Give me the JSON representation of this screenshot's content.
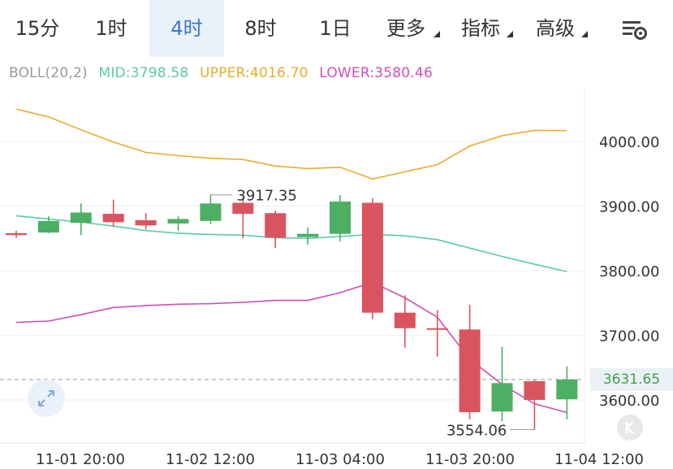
{
  "tabs": [
    {
      "label": "15分",
      "active": false
    },
    {
      "label": "1时",
      "active": false
    },
    {
      "label": "4时",
      "active": true
    },
    {
      "label": "8时",
      "active": false
    },
    {
      "label": "1日",
      "active": false
    },
    {
      "label": "更多",
      "active": false,
      "dropdown": true
    },
    {
      "label": "指标",
      "active": false,
      "dropdown": true
    },
    {
      "label": "高级",
      "active": false,
      "dropdown": true
    }
  ],
  "settings_icon": "chart-settings-icon",
  "indicator": {
    "name": "BOLL(20,2)",
    "mid": "MID:3798.58",
    "upper": "UPPER:4016.70",
    "lower": "LOWER:3580.46"
  },
  "colors": {
    "up": "#4caf63",
    "down": "#d9545e",
    "mid": "#5cc9a7",
    "upper": "#e6ac2b",
    "lower": "#d04fb3",
    "active_tab_text": "#3c78c8"
  },
  "chart_data": {
    "type": "candlestick",
    "y_ticks": [
      "4000.00",
      "3900.00",
      "3800.00",
      "3700.00",
      "3600.00"
    ],
    "x_ticks": [
      "11-01 20:00",
      "11-02 12:00",
      "11-03 04:00",
      "11-03 20:00",
      "11-04 12:00"
    ],
    "current_price": "3631.65",
    "high_label": "3917.35",
    "low_label": "3554.06",
    "candles": [
      {
        "o": 3858,
        "h": 3862,
        "l": 3851,
        "c": 3855
      },
      {
        "o": 3859,
        "h": 3884,
        "l": 3858,
        "c": 3877
      },
      {
        "o": 3874,
        "h": 3904,
        "l": 3855,
        "c": 3890
      },
      {
        "o": 3888,
        "h": 3910,
        "l": 3868,
        "c": 3875
      },
      {
        "o": 3878,
        "h": 3889,
        "l": 3864,
        "c": 3870
      },
      {
        "o": 3873,
        "h": 3884,
        "l": 3862,
        "c": 3880
      },
      {
        "o": 3877,
        "h": 3917.35,
        "l": 3872,
        "c": 3904
      },
      {
        "o": 3905,
        "h": 3914,
        "l": 3850,
        "c": 3888
      },
      {
        "o": 3889,
        "h": 3893,
        "l": 3835,
        "c": 3851
      },
      {
        "o": 3852,
        "h": 3867,
        "l": 3840,
        "c": 3857
      },
      {
        "o": 3857,
        "h": 3917,
        "l": 3845,
        "c": 3907
      },
      {
        "o": 3905,
        "h": 3912,
        "l": 3725,
        "c": 3735
      },
      {
        "o": 3735,
        "h": 3762,
        "l": 3681,
        "c": 3711
      },
      {
        "o": 3711,
        "h": 3739,
        "l": 3667,
        "c": 3709
      },
      {
        "o": 3709,
        "h": 3747,
        "l": 3570,
        "c": 3581
      },
      {
        "o": 3582,
        "h": 3682,
        "l": 3567,
        "c": 3626
      },
      {
        "o": 3629,
        "h": 3632,
        "l": 3554.06,
        "c": 3600
      },
      {
        "o": 3601,
        "h": 3652,
        "l": 3570,
        "c": 3631.65
      }
    ],
    "mid": [
      3885,
      3880,
      3875,
      3869,
      3862,
      3858,
      3856,
      3855,
      3851,
      3850,
      3853,
      3856,
      3854,
      3848,
      3835,
      3822,
      3810,
      3798.58
    ],
    "upper": [
      4050,
      4038,
      4018,
      3999,
      3983,
      3978,
      3974,
      3972,
      3962,
      3958,
      3960,
      3942,
      3953,
      3964,
      3993,
      4009,
      4017,
      4016.7
    ],
    "lower": [
      3720,
      3722,
      3732,
      3743,
      3746,
      3748,
      3749,
      3751,
      3754,
      3754,
      3766,
      3782,
      3758,
      3728,
      3663,
      3624,
      3594,
      3580.46
    ]
  },
  "zoom_icon": "expand-arrows-icon",
  "kline_button": {
    "label": "K",
    "icon": "k-line-icon"
  }
}
